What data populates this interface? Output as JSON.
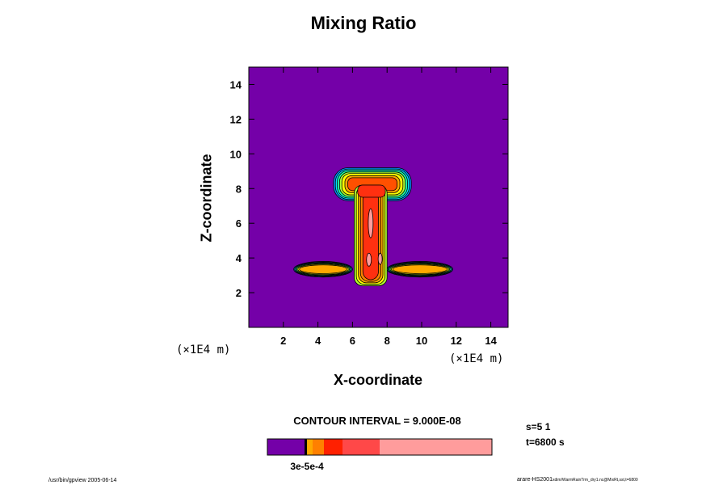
{
  "chart_data": {
    "type": "heatmap",
    "title": "Mixing Ratio",
    "xlabel": "X-coordinate",
    "ylabel": "Z-coordinate",
    "x_unit": "(×1E4 m)",
    "y_unit": "(×1E4 m)",
    "xlim": [
      0,
      15
    ],
    "ylim": [
      0,
      15
    ],
    "x_ticks": [
      "2",
      "4",
      "6",
      "8",
      "10",
      "12",
      "14"
    ],
    "y_ticks": [
      "2",
      "4",
      "6",
      "8",
      "10",
      "12",
      "14"
    ],
    "background_color": "#7400a8",
    "contour_interval": "CONTOUR INTERVAL = 9.000E-08",
    "field": {
      "anvil": {
        "x": [
          4.9,
          9.4
        ],
        "z": [
          7.3,
          9.2
        ]
      },
      "column": {
        "x": [
          6.1,
          8.0
        ],
        "z": [
          2.4,
          8.2
        ]
      },
      "outflow_left": {
        "x": [
          2.6,
          6.0
        ],
        "z": [
          2.9,
          3.8
        ]
      },
      "outflow_right": {
        "x": [
          8.0,
          11.8
        ],
        "z": [
          2.9,
          3.8
        ]
      }
    },
    "colorbar": {
      "colors": [
        "#7400a8",
        "#000000",
        "#ffa800",
        "#ff8000",
        "#ff2000",
        "#ff4848",
        "#ff9c9c"
      ],
      "widths": [
        46,
        3,
        7,
        14,
        23,
        46,
        139
      ],
      "tick_label": "3e-5e-4"
    }
  },
  "info": {
    "line1": "s=5 1",
    "line2": "t=6800 s"
  },
  "footer": {
    "left": "/usr/bin/gpview 2005-06-14",
    "right": "arare-HS2001",
    "right_small": "xdim/WarmRainTrm_dry1.nc@MixRt,sst,t=6800"
  }
}
